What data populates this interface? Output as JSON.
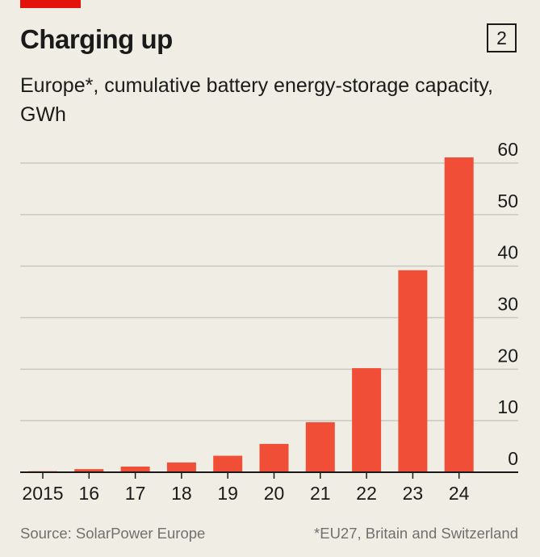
{
  "header": {
    "title": "Charging up",
    "chart_number": "2",
    "subtitle": "Europe*, cumulative battery energy-storage capacity, GWh"
  },
  "footer": {
    "source": "Source: SolarPower Europe",
    "footnote": "*EU27, Britain and Switzerland"
  },
  "colors": {
    "bar": "#f04e37",
    "accent": "#e3120b",
    "background": "#f0eee4",
    "gridline": "#c9c7bf",
    "axis": "#1a1a1a"
  },
  "chart_data": {
    "type": "bar",
    "title": "Charging up",
    "subtitle": "Europe*, cumulative battery energy-storage capacity, GWh",
    "categories": [
      "2015",
      "16",
      "17",
      "18",
      "19",
      "20",
      "21",
      "22",
      "23",
      "24"
    ],
    "values": [
      0.2,
      0.6,
      1.1,
      1.9,
      3.2,
      5.5,
      9.7,
      20.2,
      39.2,
      61.1
    ],
    "ylim": [
      0,
      60
    ],
    "yticks": [
      0,
      10,
      20,
      30,
      40,
      50,
      60
    ],
    "ytick_labels": [
      "0",
      "10",
      "20",
      "30",
      "40",
      "50",
      "60"
    ],
    "xlabel": "",
    "ylabel": "GWh",
    "grid": true,
    "y_axis_side": "right"
  }
}
